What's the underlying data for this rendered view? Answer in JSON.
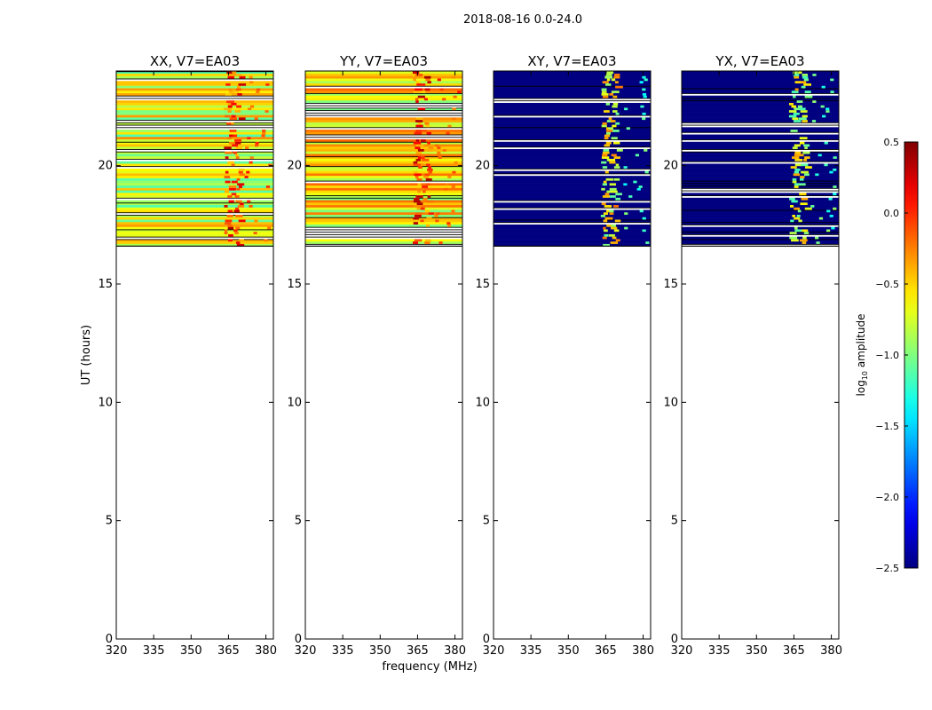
{
  "chart_data": {
    "type": "heatmap",
    "suptitle": "2018-08-16 0.0-24.0",
    "xlabel": "frequency (MHz)",
    "ylabel": "UT (hours)",
    "xlim": [
      320,
      383
    ],
    "ylim": [
      0,
      24
    ],
    "xticks": [
      320,
      335,
      350,
      365,
      380
    ],
    "yticks": [
      0,
      5,
      10,
      15,
      20
    ],
    "data_time_range": [
      16.6,
      24.0
    ],
    "bright_freq_bands": [
      [
        363,
        367
      ],
      [
        366,
        371
      ]
    ],
    "panels": [
      {
        "title": "XX, V7=EA03",
        "baseline_log_amplitude": -0.7,
        "peak_log_amplitude": 0.4
      },
      {
        "title": "YY, V7=EA03",
        "baseline_log_amplitude": -0.6,
        "peak_log_amplitude": 0.4
      },
      {
        "title": "XY, V7=EA03",
        "baseline_log_amplitude": -2.5,
        "peak_log_amplitude": -0.2
      },
      {
        "title": "YX, V7=EA03",
        "baseline_log_amplitude": -2.5,
        "peak_log_amplitude": -0.3
      }
    ],
    "colorbar": {
      "label_prefix": "log",
      "label_sub": "10",
      "label_suffix": " amplitude",
      "range": [
        -2.5,
        0.5
      ],
      "ticks": [
        "0.5",
        "0.0",
        "−0.5",
        "−1.0",
        "−1.5",
        "−2.0",
        "−2.5"
      ],
      "tick_values": [
        0.5,
        0.0,
        -0.5,
        -1.0,
        -1.5,
        -2.0,
        -2.5
      ],
      "colormap": "jet"
    }
  }
}
